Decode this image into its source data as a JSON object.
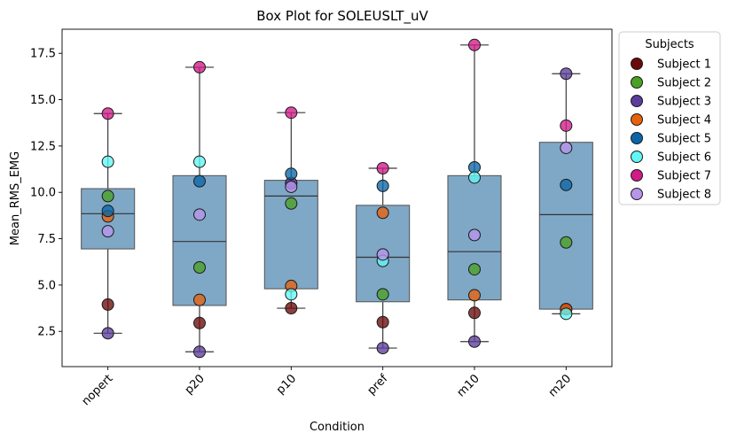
{
  "chart_data": {
    "type": "box",
    "title": "Box Plot for SOLEUSLT_uV",
    "xlabel": "Condition",
    "ylabel": "Mean_RMS_EMG",
    "ylim": [
      0.6,
      18.8
    ],
    "yticks": [
      2.5,
      5.0,
      7.5,
      10.0,
      12.5,
      15.0,
      17.5
    ],
    "ytick_labels": [
      "2.5",
      "5.0",
      "7.5",
      "10.0",
      "12.5",
      "15.0",
      "17.5"
    ],
    "categories": [
      "nopert",
      "p20",
      "p10",
      "pref",
      "m10",
      "m20"
    ],
    "legend": {
      "title": "Subjects",
      "placement": "outside-right",
      "entries": [
        "Subject 1",
        "Subject 2",
        "Subject 3",
        "Subject 4",
        "Subject 5",
        "Subject 6",
        "Subject 7",
        "Subject 8"
      ]
    },
    "subject_colors": [
      "#6b0a0a",
      "#4aa123",
      "#5b3c9b",
      "#e8620c",
      "#0a66a8",
      "#62f6f4",
      "#d11b88",
      "#b795ea"
    ],
    "box_color": "#7fa8c7",
    "boxes": [
      {
        "category": "nopert",
        "whisker_low": 2.4,
        "q1": 6.95,
        "median": 8.85,
        "q3": 10.2,
        "whisker_high": 14.25
      },
      {
        "category": "p20",
        "whisker_low": 1.4,
        "q1": 3.9,
        "median": 7.35,
        "q3": 10.9,
        "whisker_high": 16.75
      },
      {
        "category": "p10",
        "whisker_low": 3.75,
        "q1": 4.8,
        "median": 9.8,
        "q3": 10.65,
        "whisker_high": 14.3
      },
      {
        "category": "pref",
        "whisker_low": 1.6,
        "q1": 4.1,
        "median": 6.5,
        "q3": 9.3,
        "whisker_high": 11.3
      },
      {
        "category": "m10",
        "whisker_low": 1.95,
        "q1": 4.2,
        "median": 6.8,
        "q3": 10.9,
        "whisker_high": 17.95
      },
      {
        "category": "m20",
        "whisker_low": 3.45,
        "q1": 3.7,
        "median": 8.8,
        "q3": 12.7,
        "whisker_high": 16.4
      }
    ],
    "points": [
      {
        "category": "nopert",
        "values": [
          3.95,
          9.8,
          2.4,
          8.7,
          9.0,
          11.65,
          14.25,
          7.9
        ]
      },
      {
        "category": "p20",
        "values": [
          2.95,
          5.95,
          1.4,
          4.2,
          10.6,
          11.65,
          16.75,
          8.8
        ]
      },
      {
        "category": "p10",
        "values": [
          3.75,
          9.4,
          10.5,
          4.95,
          11.0,
          4.5,
          14.3,
          10.3
        ]
      },
      {
        "category": "pref",
        "values": [
          3.0,
          4.5,
          1.6,
          8.9,
          10.35,
          6.3,
          11.3,
          6.65
        ]
      },
      {
        "category": "m10",
        "values": [
          3.5,
          5.85,
          1.95,
          4.45,
          11.35,
          10.8,
          17.95,
          7.7
        ]
      },
      {
        "category": "m20",
        "values": [
          3.7,
          7.3,
          16.4,
          3.7,
          10.4,
          3.45,
          13.6,
          12.4
        ]
      }
    ]
  }
}
